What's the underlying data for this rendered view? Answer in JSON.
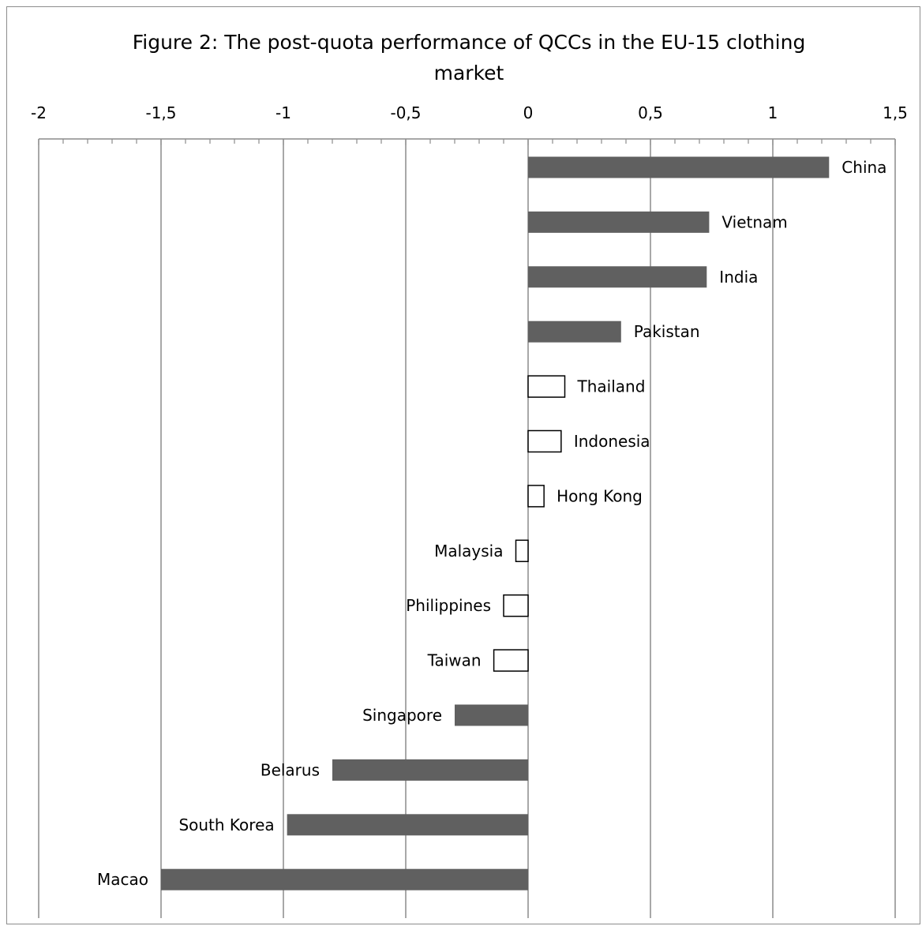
{
  "chart_data": {
    "type": "bar",
    "orientation": "horizontal",
    "title_lines": [
      "Figure 2: The post-quota performance of QCCs in the EU-15 clothing",
      "market"
    ],
    "title": "Figure 2: The post-quota performance of QCCs in the EU-15 clothing market",
    "xlabel": "",
    "ylabel": "",
    "xlim": [
      -2,
      1.5
    ],
    "x_axis_position": "top",
    "x_ticks": [
      -2,
      -1.5,
      -1,
      -0.5,
      0,
      0.5,
      1,
      1.5
    ],
    "x_tick_labels": [
      "-2",
      "-1,5",
      "-1",
      "-0,5",
      "0",
      "0,5",
      "1",
      "1,5"
    ],
    "grid": true,
    "legend": "none",
    "categories": [
      "China",
      "Vietnam",
      "India",
      "Pakistan",
      "Thailand",
      "Indonesia",
      "Hong Kong",
      "Malaysia",
      "Philippines",
      "Taiwan",
      "Singapore",
      "Belarus",
      "South Korea",
      "Macao"
    ],
    "values": [
      1.23,
      0.74,
      0.73,
      0.38,
      0.15,
      0.135,
      0.065,
      -0.05,
      -0.1,
      -0.14,
      -0.3,
      -0.8,
      -0.985,
      -1.5
    ],
    "bar_style": [
      "filled",
      "filled",
      "filled",
      "filled",
      "outline",
      "outline",
      "outline",
      "outline",
      "outline",
      "outline",
      "filled",
      "filled",
      "filled",
      "filled"
    ],
    "colors": {
      "filled": "#606060",
      "outline": "#ffffff",
      "outline_stroke": "#000000",
      "grid": "#8c8c8c"
    }
  }
}
